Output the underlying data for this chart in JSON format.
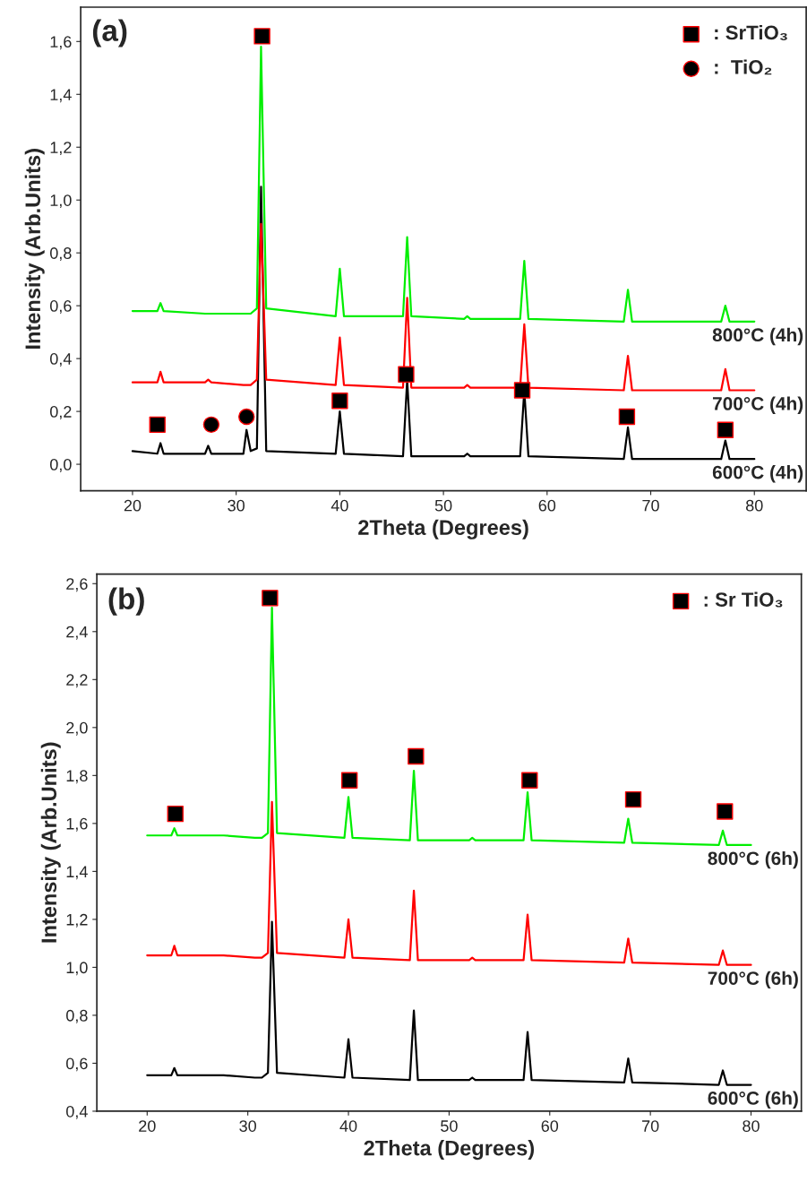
{
  "chart_data": [
    {
      "type": "line",
      "xlabel": "2Theta (Degrees)",
      "ylabel": "Intensity (Arb.Units)",
      "annotations": [
        "(a)"
      ],
      "x": [
        20,
        22.4,
        22.7,
        23.0,
        27.0,
        27.3,
        27.6,
        30.7,
        31.0,
        31.4,
        32.0,
        32.4,
        32.9,
        39.6,
        40.0,
        40.4,
        46.1,
        46.5,
        46.9,
        52.0,
        52.3,
        52.6,
        57.4,
        57.8,
        58.2,
        67.4,
        67.8,
        68.2,
        76.8,
        77.2,
        77.6,
        80
      ],
      "xlim": [
        15,
        85
      ],
      "xticks": [
        20,
        30,
        40,
        50,
        60,
        70,
        80
      ],
      "ylim": [
        -0.1,
        1.73
      ],
      "yticks": [
        {
          "value": 0.0,
          "label": "0,0"
        },
        {
          "value": 0.2,
          "label": "0,2"
        },
        {
          "value": 0.4,
          "label": "0,4"
        },
        {
          "value": 0.6,
          "label": "0,6"
        },
        {
          "value": 0.8,
          "label": "0,8"
        },
        {
          "value": 1.0,
          "label": "1,0"
        },
        {
          "value": 1.2,
          "label": "1,2"
        },
        {
          "value": 1.4,
          "label": "1,4"
        },
        {
          "value": 1.6,
          "label": "1,6"
        }
      ],
      "grid": false,
      "legend": "top right",
      "series": [
        {
          "name": "600°C (4h)",
          "color": "#000000",
          "values": [
            0.05,
            0.04,
            0.08,
            0.04,
            0.04,
            0.07,
            0.04,
            0.04,
            0.13,
            0.05,
            0.06,
            1.05,
            0.05,
            0.04,
            0.2,
            0.04,
            0.03,
            0.32,
            0.03,
            0.03,
            0.04,
            0.03,
            0.03,
            0.28,
            0.03,
            0.02,
            0.14,
            0.02,
            0.02,
            0.09,
            0.02,
            0.02
          ]
        },
        {
          "name": "700°C (4h)",
          "color": "#ff0000",
          "values": [
            0.31,
            0.31,
            0.35,
            0.31,
            0.31,
            0.32,
            0.31,
            0.3,
            0.3,
            0.3,
            0.32,
            0.91,
            0.32,
            0.3,
            0.48,
            0.3,
            0.29,
            0.63,
            0.29,
            0.29,
            0.3,
            0.29,
            0.29,
            0.53,
            0.29,
            0.28,
            0.41,
            0.28,
            0.28,
            0.36,
            0.28,
            0.28
          ]
        },
        {
          "name": "800°C (4h)",
          "color": "#00ee00",
          "values": [
            0.58,
            0.58,
            0.61,
            0.58,
            0.57,
            0.57,
            0.57,
            0.57,
            0.57,
            0.57,
            0.59,
            1.58,
            0.59,
            0.56,
            0.74,
            0.56,
            0.56,
            0.86,
            0.56,
            0.55,
            0.56,
            0.55,
            0.55,
            0.77,
            0.55,
            0.54,
            0.66,
            0.54,
            0.54,
            0.6,
            0.54,
            0.54
          ]
        },
        {
          "name": ": SrTiO₃",
          "type": "scatter",
          "marker": "square",
          "color": "#000000",
          "x": [
            22.4,
            32.5,
            40.0,
            46.4,
            57.6,
            67.7,
            77.2
          ],
          "values": [
            0.15,
            1.62,
            0.24,
            0.34,
            0.28,
            0.18,
            0.13
          ]
        },
        {
          "name": ":  TiO₂",
          "type": "scatter",
          "marker": "circle",
          "color": "#000000",
          "x": [
            27.6,
            31.0
          ],
          "values": [
            0.15,
            0.18
          ]
        }
      ]
    },
    {
      "type": "line",
      "xlabel": "2Theta (Degrees)",
      "ylabel": "Intensity (Arb.Units)",
      "annotations": [
        "(b)"
      ],
      "x": [
        20,
        22.4,
        22.7,
        23.0,
        27.0,
        27.3,
        27.6,
        30.7,
        31.0,
        31.4,
        32.0,
        32.4,
        32.9,
        39.6,
        40.0,
        40.4,
        46.1,
        46.5,
        46.9,
        52.0,
        52.3,
        52.6,
        57.4,
        57.8,
        58.2,
        67.4,
        67.8,
        68.2,
        76.8,
        77.2,
        77.6,
        80
      ],
      "xlim": [
        15,
        85
      ],
      "xticks": [
        20,
        30,
        40,
        50,
        60,
        70,
        80
      ],
      "ylim": [
        0.4,
        2.64
      ],
      "yticks": [
        {
          "value": 0.4,
          "label": "0,4"
        },
        {
          "value": 0.6,
          "label": "0,6"
        },
        {
          "value": 0.8,
          "label": "0,8"
        },
        {
          "value": 1.0,
          "label": "1,0"
        },
        {
          "value": 1.2,
          "label": "1,2"
        },
        {
          "value": 1.4,
          "label": "1,4"
        },
        {
          "value": 1.6,
          "label": "1,6"
        },
        {
          "value": 1.8,
          "label": "1,8"
        },
        {
          "value": 2.0,
          "label": "2,0"
        },
        {
          "value": 2.2,
          "label": "2,2"
        },
        {
          "value": 2.4,
          "label": "2,4"
        },
        {
          "value": 2.6,
          "label": "2,6"
        }
      ],
      "grid": false,
      "legend": "top right",
      "series": [
        {
          "name": "600°C (6h)",
          "color": "#000000",
          "values": [
            0.55,
            0.55,
            0.58,
            0.55,
            0.55,
            0.55,
            0.55,
            0.54,
            0.54,
            0.54,
            0.56,
            1.19,
            0.56,
            0.54,
            0.7,
            0.54,
            0.53,
            0.82,
            0.53,
            0.53,
            0.54,
            0.53,
            0.53,
            0.73,
            0.53,
            0.52,
            0.62,
            0.52,
            0.51,
            0.57,
            0.51,
            0.51
          ]
        },
        {
          "name": "700°C (6h)",
          "color": "#ff0000",
          "values": [
            1.05,
            1.05,
            1.09,
            1.05,
            1.05,
            1.05,
            1.05,
            1.04,
            1.04,
            1.04,
            1.06,
            1.69,
            1.06,
            1.04,
            1.2,
            1.04,
            1.03,
            1.32,
            1.03,
            1.03,
            1.04,
            1.03,
            1.03,
            1.22,
            1.03,
            1.02,
            1.12,
            1.02,
            1.01,
            1.07,
            1.01,
            1.01
          ]
        },
        {
          "name": "800°C (6h)",
          "color": "#00ee00",
          "values": [
            1.55,
            1.55,
            1.58,
            1.55,
            1.55,
            1.55,
            1.55,
            1.54,
            1.54,
            1.54,
            1.56,
            2.5,
            1.56,
            1.54,
            1.71,
            1.54,
            1.53,
            1.82,
            1.53,
            1.53,
            1.54,
            1.53,
            1.53,
            1.73,
            1.53,
            1.52,
            1.62,
            1.52,
            1.51,
            1.57,
            1.51,
            1.51
          ]
        },
        {
          "name": ": Sr TiO₃",
          "type": "scatter",
          "marker": "square",
          "color": "#000000",
          "x": [
            22.8,
            32.2,
            40.1,
            46.7,
            58.0,
            68.3,
            77.4
          ],
          "values": [
            1.64,
            2.54,
            1.78,
            1.88,
            1.78,
            1.7,
            1.65
          ]
        }
      ]
    }
  ]
}
